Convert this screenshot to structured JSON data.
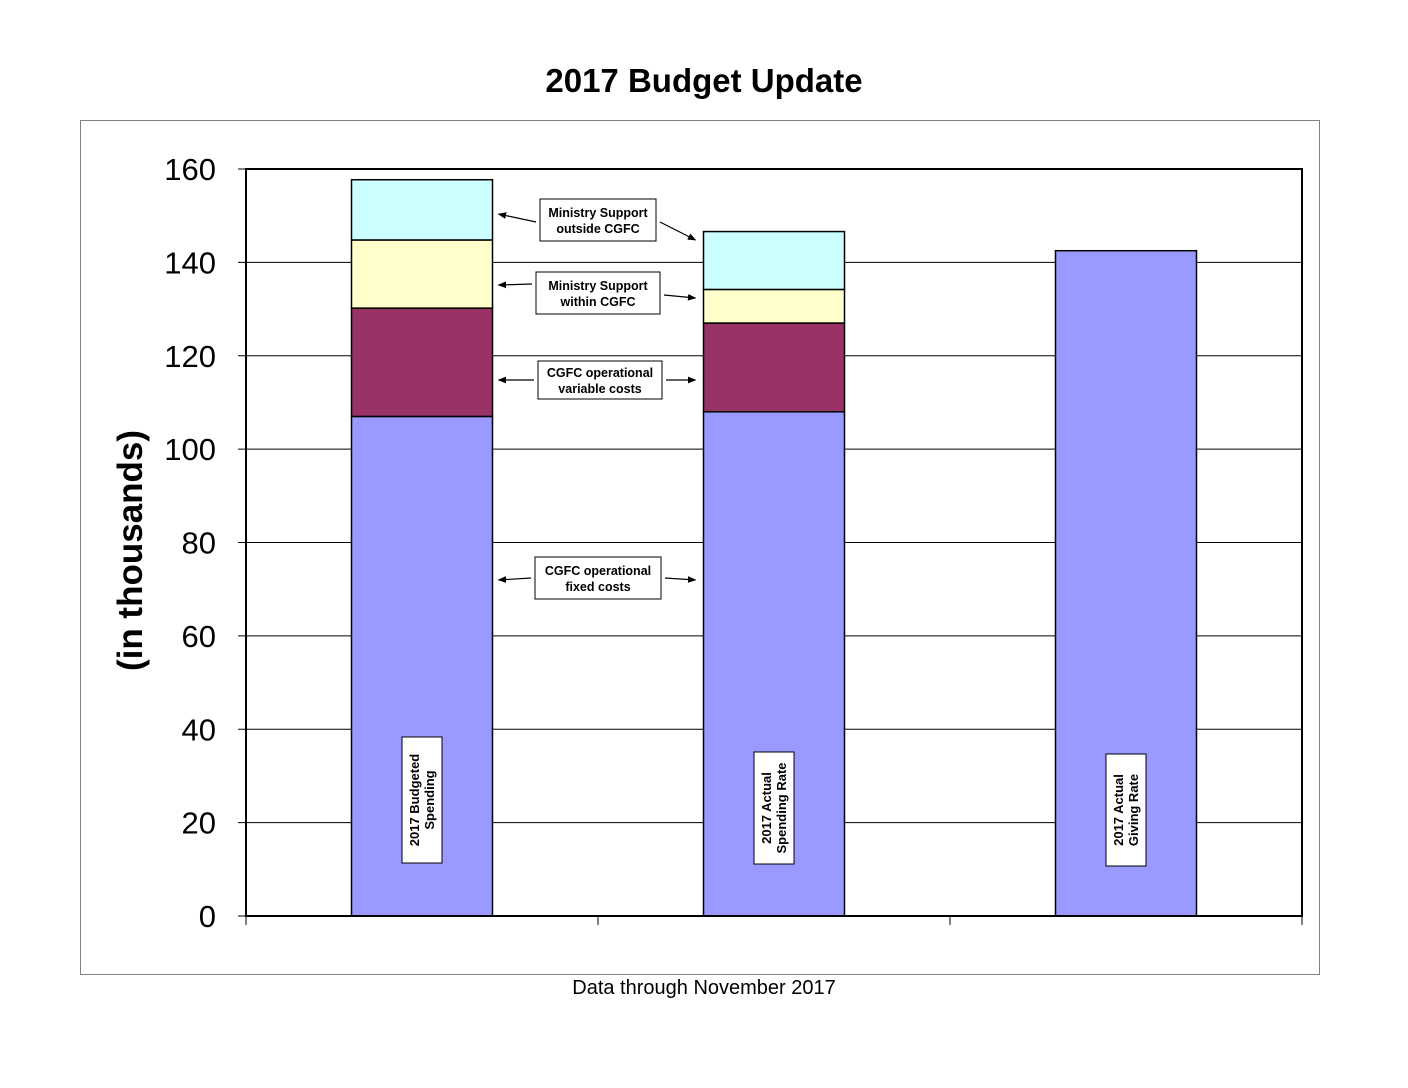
{
  "chart_data": {
    "type": "bar",
    "stacked": true,
    "title": "2017 Budget Update",
    "ylabel": "(in thousands)",
    "xlabel": "",
    "ylim": [
      0,
      160
    ],
    "yticks": [
      0,
      20,
      40,
      60,
      80,
      100,
      120,
      140,
      160
    ],
    "grid": true,
    "footnote": "Data through November 2017",
    "categories": [
      "2017  Budgeted Spending",
      "2017 Actual Spending Rate",
      "2017 Actual Giving Rate"
    ],
    "series": [
      {
        "name": "CGFC operational fixed costs",
        "color": "#9999ff",
        "values": [
          107,
          108,
          142.5
        ]
      },
      {
        "name": "CGFC operational variable costs",
        "color": "#993366",
        "values": [
          23.2,
          19,
          0
        ]
      },
      {
        "name": "Ministry Support within  CGFC",
        "color": "#ffffcc",
        "values": [
          14.6,
          7.2,
          0
        ]
      },
      {
        "name": "Ministry Support outside CGFC",
        "color": "#ccffff",
        "values": [
          12.9,
          12.4,
          0
        ]
      }
    ],
    "category_labels": [
      [
        "2017  Budgeted",
        "Spending"
      ],
      [
        "2017 Actual",
        "Spending Rate"
      ],
      [
        "2017 Actual",
        "Giving Rate"
      ]
    ],
    "annotations": [
      [
        "Ministry Support",
        "outside CGFC"
      ],
      [
        "Ministry Support",
        "within  CGFC"
      ],
      [
        "CGFC operational",
        "variable costs"
      ],
      [
        "CGFC operational",
        "fixed costs"
      ]
    ]
  }
}
